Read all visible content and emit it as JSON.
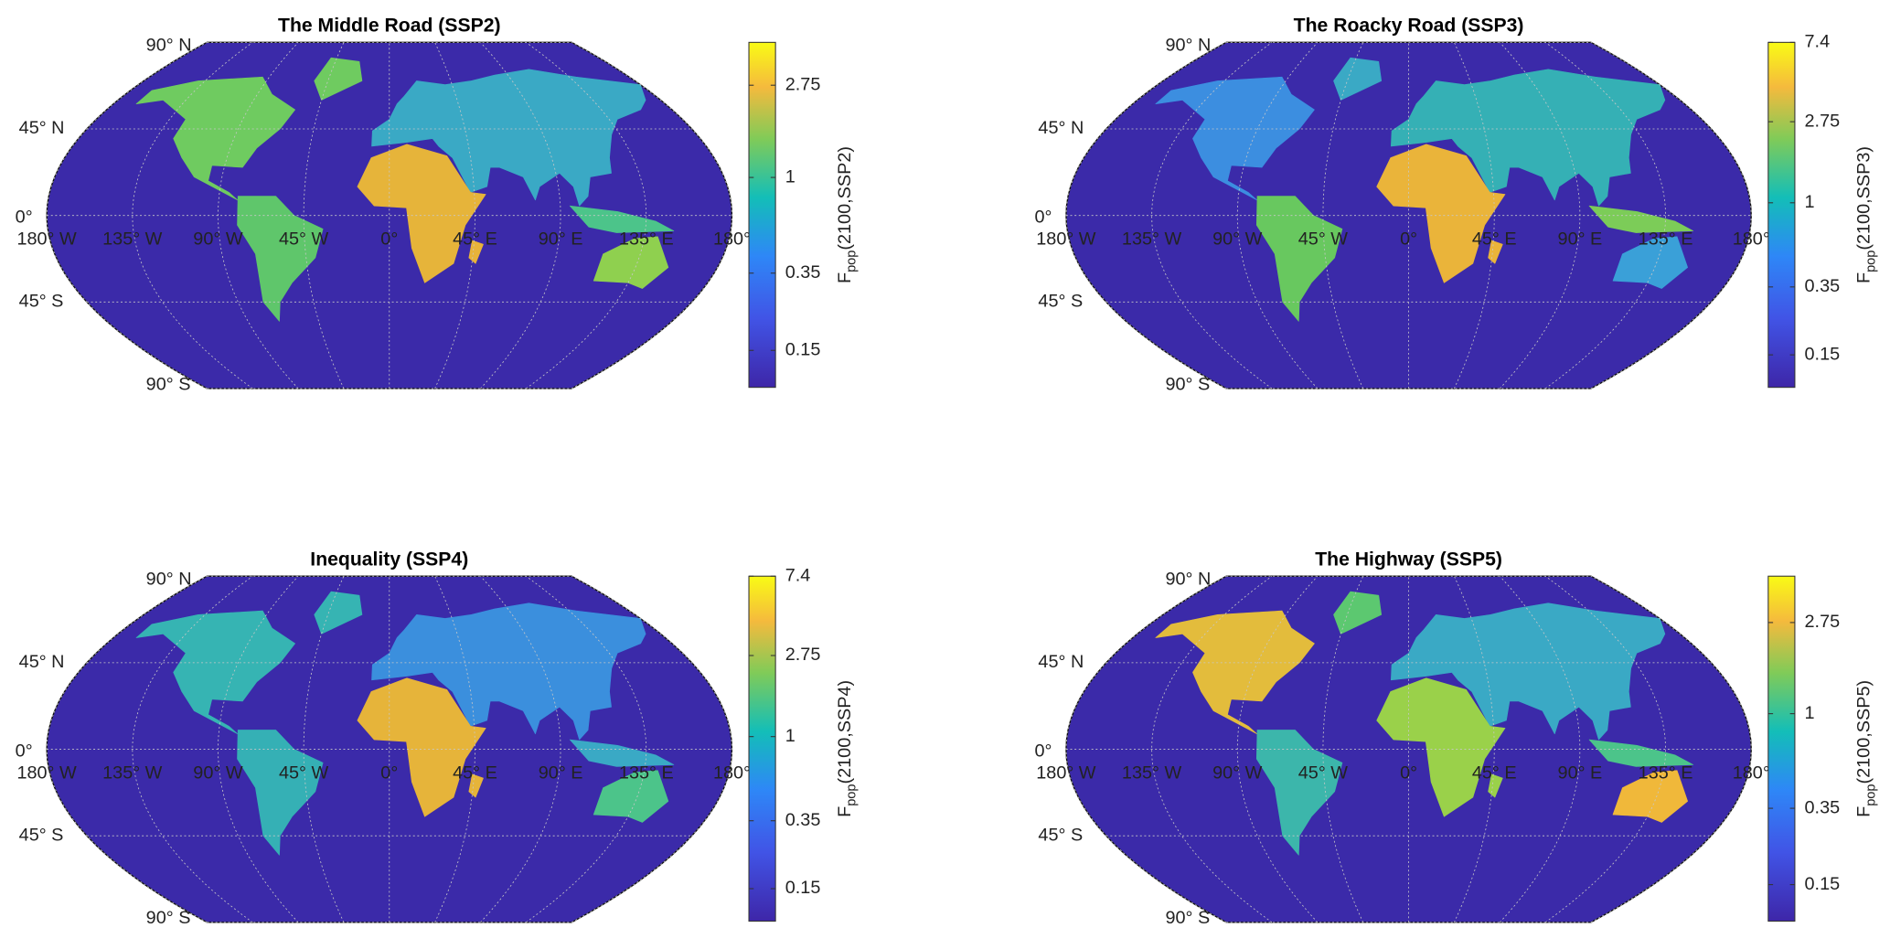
{
  "panels": [
    {
      "title": "The Middle Road (SSP2)",
      "colorbar": {
        "label": {
          "main": "F",
          "sub": "pop",
          "args": "(2100,SSP2)"
        },
        "scale": "log",
        "clim": [
          0.1,
          4.4
        ],
        "ticks": [
          0.15,
          0.35,
          1,
          2.75
        ]
      }
    },
    {
      "title": "The Roacky Road (SSP3)",
      "colorbar": {
        "label": {
          "main": "F",
          "sub": "pop",
          "args": "(2100,SSP3)"
        },
        "scale": "log",
        "clim": [
          0.1,
          7.4
        ],
        "ticks": [
          0.15,
          0.35,
          1,
          2.75,
          7.4
        ]
      }
    },
    {
      "title": "Inequality (SSP4)",
      "colorbar": {
        "label": {
          "main": "F",
          "sub": "pop",
          "args": "(2100,SSP4)"
        },
        "scale": "log",
        "clim": [
          0.1,
          7.4
        ],
        "ticks": [
          0.15,
          0.35,
          1,
          2.75,
          7.4
        ]
      }
    },
    {
      "title": "The Highway (SSP5)",
      "colorbar": {
        "label": {
          "main": "F",
          "sub": "pop",
          "args": "(2100,SSP5)"
        },
        "scale": "log",
        "clim": [
          0.1,
          4.6
        ],
        "ticks": [
          0.15,
          0.35,
          1,
          2.75
        ]
      }
    }
  ],
  "graticule": {
    "lat_labels": [
      "90° N",
      "45° N",
      "0°",
      "45° S",
      "90° S"
    ],
    "lon_labels": [
      "180° W",
      "135° W",
      "90° W",
      "45° W",
      "0°",
      "45° E",
      "90° E",
      "135° E",
      "180°"
    ]
  }
}
